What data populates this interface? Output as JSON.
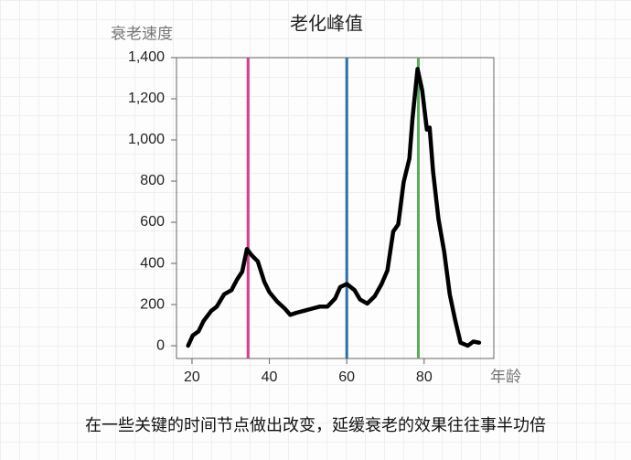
{
  "chart_data": {
    "type": "line",
    "title": "老化峰值",
    "y_label": "衰老速度",
    "x_label": "年龄",
    "caption": "在一些关键的时间节点做出改变，延缓衰老的效果往往事半功倍",
    "x": [
      19,
      20.2,
      21.7,
      23,
      25,
      26.4,
      28.3,
      30.2,
      31.6,
      33,
      34.2,
      35.4,
      37,
      38.7,
      40,
      42,
      44,
      45.4,
      47,
      49,
      51,
      53,
      55,
      57,
      58.3,
      60,
      62,
      63.4,
      65.3,
      67.2,
      69,
      70.5,
      72,
      73.3,
      74.7,
      76.2,
      77,
      78.3,
      79.5,
      80.7,
      81.4,
      82.3,
      83.7,
      85.2,
      86.6,
      88,
      89.4,
      91.3,
      92.7,
      94.2
    ],
    "series": [
      {
        "color": "#000000",
        "values": [
          0,
          50,
          70,
          120,
          170,
          190,
          250,
          270,
          320,
          360,
          470,
          440,
          410,
          310,
          260,
          215,
          180,
          150,
          160,
          170,
          180,
          190,
          190,
          230,
          285,
          300,
          270,
          225,
          205,
          240,
          300,
          365,
          555,
          590,
          795,
          910,
          1105,
          1345,
          1240,
          1050,
          1060,
          845,
          615,
          455,
          250,
          125,
          15,
          0,
          20,
          15
        ]
      }
    ],
    "vlines": [
      {
        "x": 34.5,
        "color": "#d63b8f"
      },
      {
        "x": 60,
        "color": "#2e6fa3"
      },
      {
        "x": 78.5,
        "color": "#5aac5a"
      }
    ],
    "xlim": [
      16,
      98
    ],
    "ylim": [
      -62,
      1400
    ],
    "xticks": [
      20,
      40,
      60,
      80
    ],
    "yticks": [
      0,
      200,
      400,
      600,
      800,
      {
        "value": 1000,
        "label": "1,000"
      },
      {
        "value": 1200,
        "label": "1,200"
      },
      {
        "value": 1400,
        "label": "1,400"
      }
    ]
  }
}
